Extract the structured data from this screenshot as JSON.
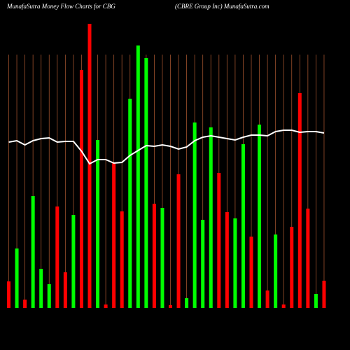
{
  "chart_data": {
    "type": "bar",
    "title": "MunafaSutra  Money Flow  Charts for CBG",
    "subtitle": "(CBRE Group Inc) MunafaSutra.com",
    "values": [
      38,
      85,
      12,
      160,
      56,
      34,
      145,
      51,
      133,
      340,
      406,
      240,
      5,
      207,
      138,
      299,
      375,
      357,
      149,
      143,
      4,
      191,
      14,
      265,
      126,
      258,
      193,
      137,
      128,
      234,
      102,
      262,
      25,
      105,
      5,
      116,
      307,
      142,
      20,
      39
    ],
    "colors": [
      "#ff0000",
      "#00ff00",
      "#ff0000",
      "#00ff00",
      "#00ff00",
      "#00ff00",
      "#ff0000",
      "#ff0000",
      "#00ff00",
      "#ff0000",
      "#ff0000",
      "#00ff00",
      "#ff0000",
      "#ff0000",
      "#ff0000",
      "#00ff00",
      "#00ff00",
      "#00ff00",
      "#ff0000",
      "#00ff00",
      "#ff0000",
      "#ff0000",
      "#00ff00",
      "#00ff00",
      "#00ff00",
      "#00ff00",
      "#ff0000",
      "#ff0000",
      "#00ff00",
      "#00ff00",
      "#ff0000",
      "#00ff00",
      "#ff0000",
      "#00ff00",
      "#ff0000",
      "#ff0000",
      "#ff0000",
      "#ff0000",
      "#00ff00",
      "#ff0000"
    ],
    "line": {
      "color": "#ffffff",
      "values": [
        237,
        239,
        233,
        239,
        242,
        243,
        237,
        238,
        238,
        224,
        206,
        212,
        212,
        207,
        208,
        218,
        225,
        232,
        231,
        233,
        231,
        227,
        230,
        239,
        244,
        246,
        244,
        242,
        240,
        244,
        247,
        247,
        246,
        252,
        254,
        254,
        251,
        252,
        252,
        250
      ]
    },
    "grid_color": "#a0522d"
  }
}
